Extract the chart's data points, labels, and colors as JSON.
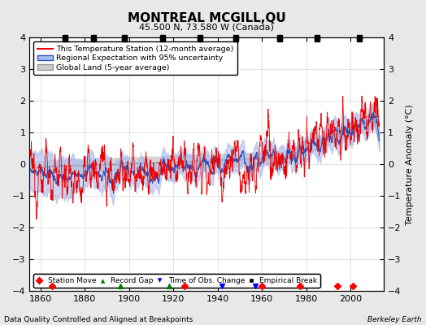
{
  "title": "MONTREAL MCGILL,QU",
  "subtitle": "45.500 N, 73.580 W (Canada)",
  "xlabel_bottom": "Data Quality Controlled and Aligned at Breakpoints",
  "xlabel_right": "Berkeley Earth",
  "ylabel": "Temperature Anomaly (°C)",
  "xlim": [
    1855,
    2015
  ],
  "ylim": [
    -4,
    4
  ],
  "yticks": [
    -4,
    -3,
    -2,
    -1,
    0,
    1,
    2,
    3,
    4
  ],
  "xticks": [
    1860,
    1880,
    1900,
    1920,
    1940,
    1960,
    1980,
    2000
  ],
  "bg_color": "#e8e8e8",
  "plot_bg_color": "#ffffff",
  "legend_labels": [
    "This Temperature Station (12-month average)",
    "Regional Expectation with 95% uncertainty",
    "Global Land (5-year average)"
  ],
  "station_moves": [
    1865,
    1925,
    1960,
    1977,
    1994,
    2001
  ],
  "record_gaps": [
    1896,
    1918
  ],
  "obs_changes": [
    1942,
    1957
  ],
  "empirical_breaks": [
    1871,
    1884,
    1898,
    1915,
    1932,
    1948,
    1968,
    1985,
    2004
  ],
  "years_start": 1855,
  "years_end": 2012,
  "seed": 12345
}
